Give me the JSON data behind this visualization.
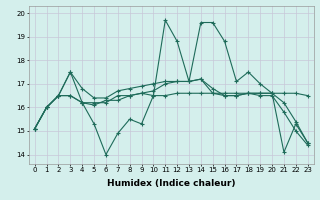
{
  "xlabel": "Humidex (Indice chaleur)",
  "background_color": "#d4efec",
  "grid_color": "#c8c8d8",
  "line_color": "#1e6b5a",
  "x_ticks": [
    0,
    1,
    2,
    3,
    4,
    5,
    6,
    7,
    8,
    9,
    10,
    11,
    12,
    13,
    14,
    15,
    16,
    17,
    18,
    19,
    20,
    21,
    22,
    23
  ],
  "ylim": [
    13.6,
    20.3
  ],
  "xlim": [
    -0.5,
    23.5
  ],
  "yticks": [
    14,
    15,
    16,
    17,
    18,
    19,
    20
  ],
  "series": [
    [
      15.1,
      16.0,
      16.5,
      17.5,
      16.2,
      15.3,
      14.0,
      14.9,
      15.5,
      15.3,
      16.5,
      19.7,
      18.8,
      17.1,
      19.6,
      19.6,
      18.8,
      17.1,
      17.5,
      17.0,
      16.6,
      14.1,
      15.3,
      14.5
    ],
    [
      15.1,
      16.0,
      16.5,
      16.5,
      16.2,
      16.2,
      16.2,
      16.5,
      16.5,
      16.6,
      16.7,
      17.0,
      17.1,
      17.1,
      17.2,
      16.6,
      16.5,
      16.5,
      16.6,
      16.6,
      16.6,
      16.6,
      16.6,
      16.5
    ],
    [
      15.1,
      16.0,
      16.5,
      16.5,
      16.2,
      16.1,
      16.3,
      16.3,
      16.5,
      16.6,
      16.5,
      16.5,
      16.6,
      16.6,
      16.6,
      16.6,
      16.6,
      16.6,
      16.6,
      16.6,
      16.6,
      16.2,
      15.4,
      14.5
    ],
    [
      15.1,
      16.0,
      16.5,
      17.5,
      16.8,
      16.4,
      16.4,
      16.7,
      16.8,
      16.9,
      17.0,
      17.1,
      17.1,
      17.1,
      17.2,
      16.8,
      16.5,
      16.5,
      16.6,
      16.5,
      16.5,
      15.8,
      15.0,
      14.4
    ]
  ],
  "xlabel_fontsize": 6.5,
  "tick_fontsize": 5.0,
  "linewidth": 0.8,
  "markersize": 3.0
}
